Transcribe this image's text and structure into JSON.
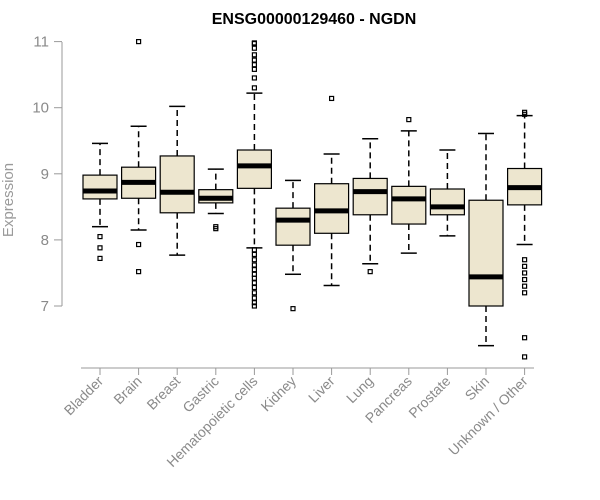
{
  "chart_data": {
    "type": "boxplot",
    "title": "ENSG00000129460 - NGDN",
    "xlabel": "",
    "ylabel": "Expression",
    "yticks": [
      7,
      8,
      9,
      10,
      11
    ],
    "ylim": [
      6.15,
      11.1
    ],
    "colors": {
      "box_fill": "#ede6cf",
      "box_stroke": "#000000",
      "median": "#000000",
      "axis": "#9a9a9a",
      "tick_text": "#8a8a8a"
    },
    "categories": [
      "Bladder",
      "Brain",
      "Breast",
      "Gastric",
      "Hematopoietic cells",
      "Kidney",
      "Liver",
      "Lung",
      "Pancreas",
      "Prostate",
      "Skin",
      "Unknown / Other"
    ],
    "boxes": [
      {
        "q1": 8.62,
        "median": 8.74,
        "q3": 8.98,
        "whisker_low": 8.2,
        "whisker_high": 9.46,
        "outliers": [
          8.05,
          7.88,
          7.72
        ]
      },
      {
        "q1": 8.63,
        "median": 8.87,
        "q3": 9.1,
        "whisker_low": 8.15,
        "whisker_high": 9.72,
        "outliers": [
          7.93,
          7.52,
          11.0
        ]
      },
      {
        "q1": 8.41,
        "median": 8.72,
        "q3": 9.27,
        "whisker_low": 7.77,
        "whisker_high": 10.02,
        "outliers": []
      },
      {
        "q1": 8.56,
        "median": 8.63,
        "q3": 8.76,
        "whisker_low": 8.4,
        "whisker_high": 9.07,
        "outliers": [
          8.2,
          8.17
        ]
      },
      {
        "q1": 8.78,
        "median": 9.12,
        "q3": 9.36,
        "whisker_low": 7.88,
        "whisker_high": 10.22,
        "outliers": [
          10.3,
          10.45,
          10.58,
          10.65,
          10.72,
          10.8,
          10.9,
          10.97,
          10.98,
          7.85,
          7.78,
          7.7,
          7.62,
          7.55,
          7.48,
          7.42,
          7.35,
          7.28,
          7.2,
          7.12,
          7.05,
          7.0
        ]
      },
      {
        "q1": 7.92,
        "median": 8.3,
        "q3": 8.48,
        "whisker_low": 7.48,
        "whisker_high": 8.9,
        "outliers": [
          6.96
        ]
      },
      {
        "q1": 8.1,
        "median": 8.44,
        "q3": 8.85,
        "whisker_low": 7.31,
        "whisker_high": 9.3,
        "outliers": [
          10.14
        ]
      },
      {
        "q1": 8.38,
        "median": 8.73,
        "q3": 8.93,
        "whisker_low": 7.64,
        "whisker_high": 9.53,
        "outliers": [
          7.52
        ]
      },
      {
        "q1": 8.24,
        "median": 8.62,
        "q3": 8.81,
        "whisker_low": 7.8,
        "whisker_high": 9.65,
        "outliers": [
          9.82
        ]
      },
      {
        "q1": 8.38,
        "median": 8.5,
        "q3": 8.77,
        "whisker_low": 8.06,
        "whisker_high": 9.36,
        "outliers": []
      },
      {
        "q1": 7.0,
        "median": 7.44,
        "q3": 8.6,
        "whisker_low": 6.4,
        "whisker_high": 9.61,
        "outliers": []
      },
      {
        "q1": 8.53,
        "median": 8.79,
        "q3": 9.08,
        "whisker_low": 7.93,
        "whisker_high": 9.88,
        "outliers": [
          9.93,
          9.9,
          7.7,
          7.6,
          7.5,
          7.4,
          7.3,
          7.2,
          6.52,
          6.23
        ]
      }
    ]
  }
}
